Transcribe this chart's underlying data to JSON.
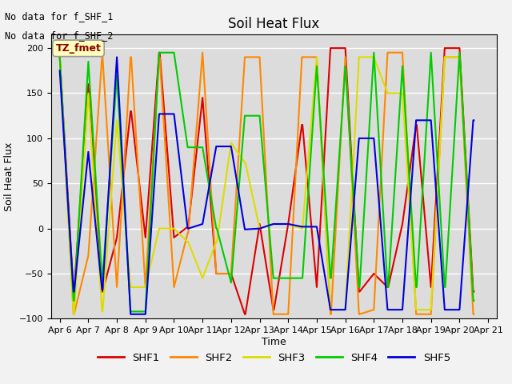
{
  "title": "Soil Heat Flux",
  "ylabel": "Soil Heat Flux",
  "xlabel": "Time",
  "note1": "No data for f_SHF_1",
  "note2": "No data for f_SHF_2",
  "annotation": "TZ_fmet",
  "ylim": [
    -100,
    215
  ],
  "yticks": [
    -100,
    -50,
    0,
    50,
    100,
    150,
    200
  ],
  "colors": {
    "SHF1": "#dd0000",
    "SHF2": "#ff8800",
    "SHF3": "#dddd00",
    "SHF4": "#00cc00",
    "SHF5": "#0000dd"
  },
  "bg_color": "#dcdcdc",
  "fig_bg": "#f2f2f2",
  "x_labels": [
    "Apr 6",
    "Apr 7",
    "Apr 8",
    "Apr 9",
    "Apr 10",
    "Apr 11",
    "Apr 12",
    "Apr 13",
    "Apr 14",
    "Apr 15",
    "Apr 16",
    "Apr 17",
    "Apr 18",
    "Apr 19",
    "Apr 20",
    "Apr 21"
  ],
  "SHF1_x": [
    6,
    6,
    6.48,
    6.5,
    7,
    7,
    7.48,
    7.5,
    8,
    8,
    8.48,
    8.5,
    9,
    9,
    9.48,
    9.5,
    10,
    10,
    10.48,
    10.5,
    11,
    11,
    11.48,
    11.5,
    12,
    12,
    12.48,
    12.5,
    13,
    13,
    13.48,
    13.5,
    14,
    14,
    14.48,
    14.5,
    15,
    15,
    15.48,
    15.5,
    16,
    16,
    16.48,
    16.5,
    17,
    17,
    17.48,
    17.5,
    18,
    18,
    18.48,
    18.5,
    19,
    19,
    19.48,
    19.5,
    20,
    20,
    20.48,
    20.5
  ],
  "SHF1_y": [
    190,
    190,
    -70,
    -70,
    160,
    160,
    -70,
    -70,
    -10,
    -10,
    130,
    130,
    -10,
    -10,
    195,
    195,
    -10,
    -10,
    2,
    2,
    145,
    145,
    -50,
    -50,
    -50,
    -50,
    -95,
    -95,
    5,
    5,
    -90,
    -90,
    5,
    5,
    115,
    115,
    -65,
    -65,
    200,
    200,
    200,
    200,
    -70,
    -70,
    -50,
    -50,
    -65,
    -65,
    5,
    5,
    115,
    115,
    -65,
    -65,
    200,
    200,
    200,
    200,
    -70,
    -70
  ],
  "SHF2_x": [
    6,
    6,
    6.48,
    6.5,
    7,
    7,
    7.48,
    7.5,
    8,
    8,
    8.48,
    8.5,
    9,
    9,
    9.48,
    9.5,
    10,
    10,
    10.48,
    10.5,
    11,
    11,
    11.48,
    11.5,
    12,
    12,
    12.48,
    12.5,
    13,
    13,
    13.48,
    13.5,
    14,
    14,
    14.48,
    14.5,
    15,
    15,
    15.48,
    15.5,
    16,
    16,
    16.48,
    16.5,
    17,
    17,
    17.48,
    17.5,
    18,
    18,
    18.48,
    18.5,
    19,
    19,
    19.48,
    19.5,
    20,
    20,
    20.48,
    20.5
  ],
  "SHF2_y": [
    193,
    193,
    -95,
    -95,
    -30,
    -30,
    190,
    190,
    -65,
    -65,
    190,
    190,
    -65,
    -65,
    190,
    190,
    -65,
    -65,
    -5,
    -5,
    195,
    195,
    -50,
    -50,
    -50,
    -50,
    190,
    190,
    190,
    190,
    -95,
    -95,
    -95,
    -95,
    190,
    190,
    190,
    190,
    -95,
    -95,
    190,
    190,
    -95,
    -95,
    -90,
    -90,
    195,
    195,
    195,
    195,
    -95,
    -95,
    -95,
    -95,
    190,
    190,
    190,
    190,
    -95,
    -95
  ],
  "SHF3_x": [
    6,
    6,
    6.48,
    6.5,
    7,
    7,
    7.48,
    7.5,
    8,
    8,
    8.48,
    8.5,
    9,
    9,
    9.48,
    9.5,
    10,
    10,
    10.48,
    10.5,
    11,
    11,
    11.48,
    11.5,
    12,
    12,
    12.48,
    12.5,
    13,
    13,
    13.48,
    13.5,
    14,
    14,
    14.48,
    14.5,
    15,
    15,
    15.48,
    15.5,
    16,
    16,
    16.48,
    16.5,
    17,
    17,
    17.48,
    17.5,
    18,
    18,
    18.48,
    18.5,
    19,
    19,
    19.48,
    19.5,
    20,
    20,
    20.48,
    20.5
  ],
  "SHF3_y": [
    193,
    193,
    -95,
    -95,
    150,
    150,
    -92,
    -92,
    120,
    120,
    -65,
    -65,
    -65,
    -65,
    0,
    0,
    0,
    0,
    -15,
    -15,
    -55,
    -55,
    -15,
    -15,
    95,
    95,
    73,
    73,
    0,
    0,
    5,
    5,
    5,
    5,
    0,
    0,
    190,
    190,
    -90,
    -90,
    -90,
    -90,
    190,
    190,
    190,
    190,
    150,
    150,
    150,
    150,
    -90,
    -90,
    -90,
    -90,
    190,
    190,
    190,
    190,
    -80,
    -80
  ],
  "SHF4_x": [
    6,
    6,
    6.48,
    6.5,
    7,
    7,
    7.48,
    7.5,
    8,
    8,
    8.48,
    8.5,
    9,
    9,
    9.48,
    9.5,
    10,
    10,
    10.48,
    10.5,
    11,
    11,
    11.48,
    11.5,
    12,
    12,
    12.48,
    12.5,
    13,
    13,
    13.48,
    13.5,
    14,
    14,
    14.48,
    14.5,
    15,
    15,
    15.48,
    15.5,
    16,
    16,
    16.48,
    16.5,
    17,
    17,
    17.48,
    17.5,
    18,
    18,
    18.48,
    18.5,
    19,
    19,
    19.48,
    19.5,
    20,
    20,
    20.48,
    20.5
  ],
  "SHF4_y": [
    190,
    190,
    -80,
    -80,
    185,
    185,
    -55,
    -55,
    170,
    170,
    -92,
    -92,
    -92,
    -92,
    195,
    195,
    195,
    195,
    90,
    90,
    90,
    90,
    0,
    0,
    -60,
    -60,
    125,
    125,
    125,
    125,
    -55,
    -55,
    -55,
    -55,
    -55,
    -55,
    180,
    180,
    -55,
    -55,
    180,
    180,
    -65,
    -65,
    195,
    195,
    -65,
    -65,
    180,
    180,
    -65,
    -65,
    195,
    195,
    -65,
    -65,
    195,
    195,
    -80,
    -80
  ],
  "SHF5_x": [
    6,
    6,
    6.48,
    6.5,
    7,
    7,
    7.48,
    7.5,
    8,
    8,
    8.48,
    8.5,
    9,
    9,
    9.48,
    9.5,
    10,
    10,
    10.48,
    10.5,
    11,
    11,
    11.48,
    11.5,
    12,
    12,
    12.48,
    12.5,
    13,
    13,
    13.48,
    13.5,
    14,
    14,
    14.48,
    14.5,
    15,
    15,
    15.48,
    15.5,
    16,
    16,
    16.48,
    16.5,
    17,
    17,
    17.48,
    17.5,
    18,
    18,
    18.48,
    18.5,
    19,
    19,
    19.48,
    19.5,
    20,
    20,
    20.48,
    20.5
  ],
  "SHF5_y": [
    175,
    175,
    -70,
    -70,
    85,
    85,
    -68,
    -68,
    190,
    190,
    -95,
    -95,
    -95,
    -95,
    127,
    127,
    127,
    127,
    0,
    0,
    5,
    5,
    91,
    91,
    91,
    91,
    -1,
    -1,
    0,
    0,
    5,
    5,
    5,
    5,
    2,
    2,
    2,
    2,
    -90,
    -90,
    -90,
    -90,
    100,
    100,
    100,
    100,
    -90,
    -90,
    -90,
    -90,
    120,
    120,
    120,
    120,
    -90,
    -90,
    -90,
    -90,
    120,
    120
  ],
  "xtick_positions": [
    6,
    7,
    8,
    9,
    10,
    11,
    12,
    13,
    14,
    15,
    16,
    17,
    18,
    19,
    20,
    21
  ]
}
